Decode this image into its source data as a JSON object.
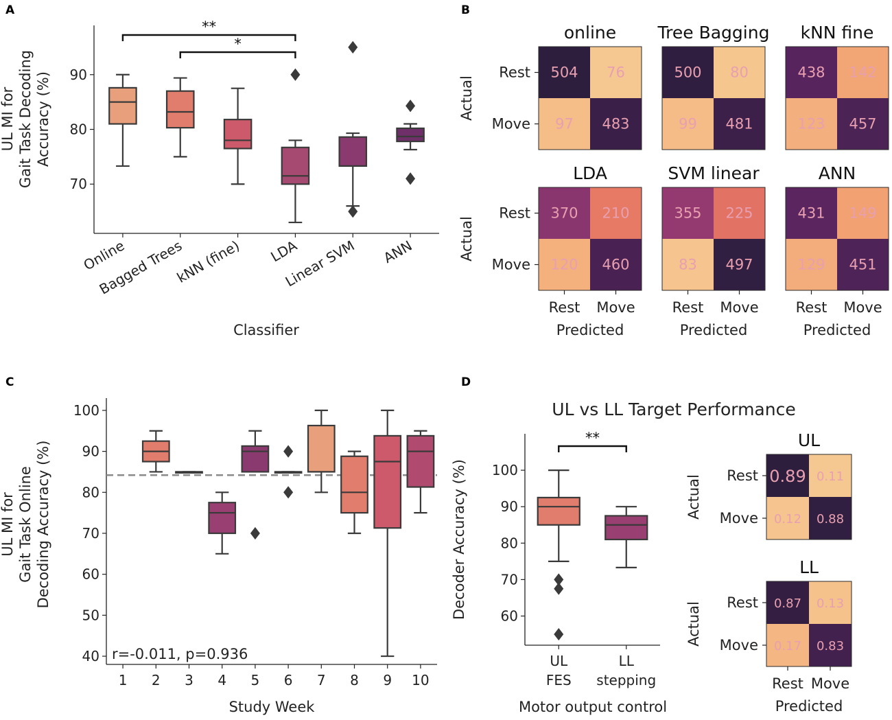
{
  "figure": {
    "panel_labels": [
      "A",
      "B",
      "C",
      "D"
    ]
  },
  "colors": {
    "axis": "#222222",
    "box_edge": "#3a3a3a",
    "ref_line": "#8a8a8a",
    "cm_light": "#f2c28e",
    "cm_dark": "#2d1e3e",
    "cm_text": "#e8a0b0"
  },
  "chart_data": [
    {
      "id": "A",
      "type": "box",
      "xlabel": "Classifier",
      "ylabel": [
        "UL MI for",
        "Gait Task Decoding",
        "Accuracy (%)"
      ],
      "ylim": [
        61,
        99
      ],
      "yticks": [
        70,
        80,
        90
      ],
      "categories": [
        "Online",
        "Bagged Trees",
        "kNN (fine)",
        "LDA",
        "Linear SVM",
        "ANN"
      ],
      "colors": [
        "#e8a07c",
        "#e07d6c",
        "#cc5a6a",
        "#a64a72",
        "#8a3a6e",
        "#6f2f68"
      ],
      "boxes": [
        {
          "q1": 81,
          "median": 85,
          "q3": 87.6,
          "lo": 73.3,
          "hi": 90,
          "outliers": []
        },
        {
          "q1": 80.3,
          "median": 83.2,
          "q3": 87,
          "lo": 75,
          "hi": 89.4,
          "outliers": []
        },
        {
          "q1": 76.5,
          "median": 78,
          "q3": 81.8,
          "lo": 70,
          "hi": 87.5,
          "outliers": []
        },
        {
          "q1": 70,
          "median": 71.5,
          "q3": 76.7,
          "lo": 63,
          "hi": 78,
          "outliers": [
            90
          ]
        },
        {
          "q1": 73.3,
          "median": 73.3,
          "q3": 78.6,
          "lo": 66,
          "hi": 79.3,
          "outliers": [
            95,
            65
          ]
        },
        {
          "q1": 77.8,
          "median": 78.7,
          "q3": 80.2,
          "lo": 76.3,
          "hi": 81,
          "outliers": [
            84.3,
            71
          ]
        }
      ],
      "significance": [
        {
          "from": 0,
          "to": 3,
          "label": "**"
        },
        {
          "from": 1,
          "to": 3,
          "label": "*"
        }
      ]
    },
    {
      "id": "B",
      "type": "heatmap",
      "row_label": "Actual",
      "col_label": "Predicted",
      "row_names": [
        "Rest",
        "Move"
      ],
      "col_names": [
        "Rest",
        "Move"
      ],
      "matrices": [
        {
          "title": "online",
          "values": [
            [
              504,
              76
            ],
            [
              97,
              483
            ]
          ]
        },
        {
          "title": "Tree Bagging",
          "values": [
            [
              500,
              80
            ],
            [
              99,
              481
            ]
          ]
        },
        {
          "title": "kNN fine",
          "values": [
            [
              438,
              142
            ],
            [
              123,
              457
            ]
          ]
        },
        {
          "title": "LDA",
          "values": [
            [
              370,
              210
            ],
            [
              120,
              460
            ]
          ]
        },
        {
          "title": "SVM linear",
          "values": [
            [
              355,
              225
            ],
            [
              83,
              497
            ]
          ]
        },
        {
          "title": "ANN",
          "values": [
            [
              431,
              149
            ],
            [
              129,
              451
            ]
          ]
        }
      ],
      "vrange": [
        76,
        504
      ]
    },
    {
      "id": "C",
      "type": "box",
      "xlabel": "Study Week",
      "ylabel": [
        "UL MI for",
        "Gait Task Online",
        "Decoding Accuracy (%)"
      ],
      "ylim": [
        38,
        103
      ],
      "yticks": [
        40,
        50,
        60,
        70,
        80,
        90,
        100
      ],
      "categories": [
        "1",
        "2",
        "3",
        "4",
        "5",
        "6",
        "7",
        "8",
        "9",
        "10"
      ],
      "colors": [
        null,
        "#e07d6c",
        "#b04a6e",
        "#9a3f72",
        "#8a3a6e",
        "#cc5a6a",
        "#e8a07c",
        "#e07d6c",
        "#cc5a6a",
        "#b04a6e"
      ],
      "boxes": [
        null,
        {
          "q1": 87.5,
          "median": 90,
          "q3": 92.5,
          "lo": 85,
          "hi": 95,
          "outliers": []
        },
        {
          "q1": 85,
          "median": 85,
          "q3": 85,
          "lo": 85,
          "hi": 85,
          "outliers": []
        },
        {
          "q1": 70,
          "median": 75,
          "q3": 77.5,
          "lo": 65,
          "hi": 80,
          "outliers": []
        },
        {
          "q1": 85,
          "median": 90,
          "q3": 91.3,
          "lo": 85,
          "hi": 95,
          "outliers": [
            70
          ]
        },
        {
          "q1": 85,
          "median": 85,
          "q3": 85,
          "lo": 85,
          "hi": 85,
          "outliers": [
            90,
            80
          ]
        },
        {
          "q1": 85,
          "median": 85,
          "q3": 96.3,
          "lo": 80,
          "hi": 100,
          "outliers": []
        },
        {
          "q1": 75,
          "median": 80,
          "q3": 88.8,
          "lo": 70,
          "hi": 90,
          "outliers": []
        },
        {
          "q1": 71.3,
          "median": 87.5,
          "q3": 93.8,
          "lo": 40,
          "hi": 100,
          "outliers": []
        },
        {
          "q1": 81.3,
          "median": 90,
          "q3": 93.8,
          "lo": 75,
          "hi": 95,
          "outliers": []
        }
      ],
      "ref_line": 84.2,
      "annotation": "r=-0.011, p=0.936"
    },
    {
      "id": "D",
      "type": "box",
      "title": "UL vs LL Target Performance",
      "xlabel": "Motor output control",
      "ylabel": [
        "Decoder Accuracy (%)"
      ],
      "ylim": [
        52,
        110
      ],
      "yticks": [
        60,
        70,
        80,
        90,
        100
      ],
      "categories": [
        [
          "UL",
          "FES"
        ],
        [
          "LL",
          "stepping"
        ]
      ],
      "colors": [
        "#e07d6c",
        "#9a3f72"
      ],
      "boxes": [
        {
          "q1": 85,
          "median": 90,
          "q3": 92.5,
          "lo": 75,
          "hi": 100,
          "outliers": [
            70,
            67.5,
            55
          ]
        },
        {
          "q1": 81,
          "median": 85,
          "q3": 87.5,
          "lo": 73.3,
          "hi": 90,
          "outliers": []
        }
      ],
      "significance": [
        {
          "from": 0,
          "to": 1,
          "label": "**"
        }
      ]
    },
    {
      "id": "D-heatmaps",
      "type": "heatmap",
      "row_label": "Actual",
      "col_label": "Predicted",
      "row_names": [
        "Rest",
        "Move"
      ],
      "col_names": [
        "Rest",
        "Move"
      ],
      "matrices": [
        {
          "title": "UL",
          "values": [
            [
              0.89,
              0.11
            ],
            [
              0.12,
              0.88
            ]
          ]
        },
        {
          "title": "LL",
          "values": [
            [
              0.87,
              0.13
            ],
            [
              0.17,
              0.83
            ]
          ]
        }
      ],
      "vrange": [
        0.11,
        0.89
      ]
    }
  ]
}
